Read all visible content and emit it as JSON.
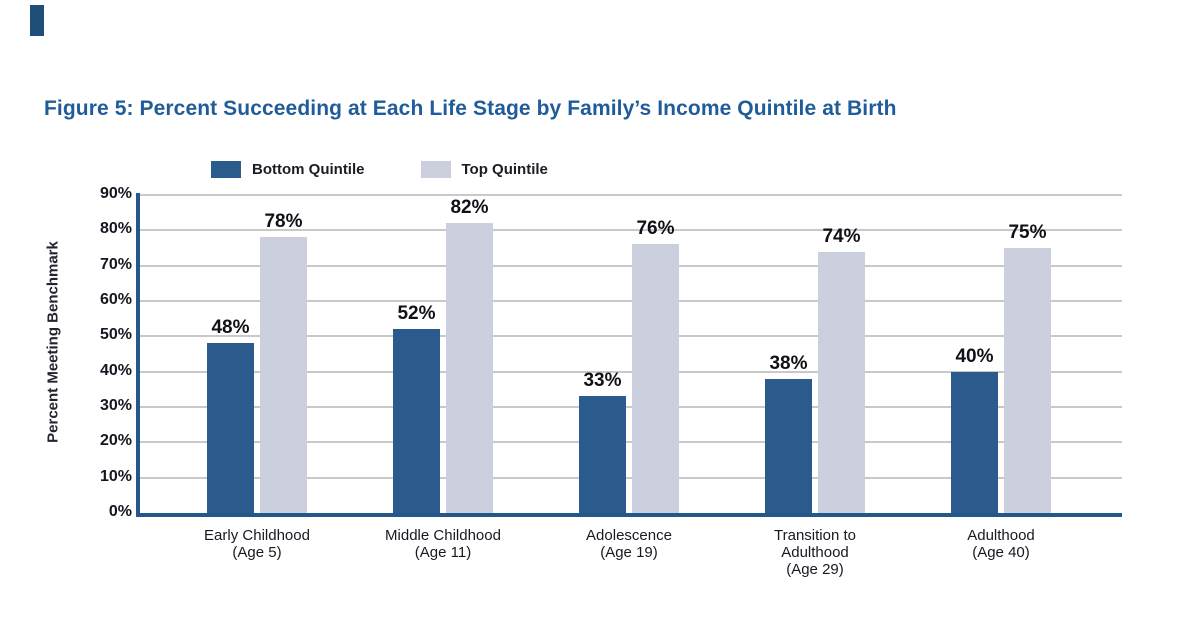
{
  "figure": {
    "title": "Figure 5: Percent Succeeding at Each Life Stage by Family’s Income Quintile at Birth"
  },
  "colors": {
    "title_blue": "#1F5C99",
    "bottom_quintile": "#2A5B8C",
    "top_quintile": "#CCCFDE",
    "axis_navy": "#24578A",
    "gridline_gray": "#C9C9C9",
    "page_marker_navy": "#1F4E79"
  },
  "chart_data": {
    "type": "bar",
    "title": "Figure 5: Percent Succeeding at Each Life Stage by Family’s Income Quintile at Birth",
    "xlabel": "",
    "ylabel": "Percent Meeting Benchmark",
    "ylim": [
      0,
      90
    ],
    "grid": true,
    "legend_position": "top",
    "yticks": [
      "90%",
      "80%",
      "70%",
      "60%",
      "50%",
      "40%",
      "30%",
      "20%",
      "10%",
      "0%"
    ],
    "categories": [
      [
        "Early Childhood",
        "(Age 5)"
      ],
      [
        "Middle Childhood",
        "(Age 11)"
      ],
      [
        "Adolescence",
        "(Age 19)"
      ],
      [
        "Transition to",
        "Adulthood",
        "(Age 29)"
      ],
      [
        "Adulthood",
        "(Age 40)"
      ]
    ],
    "series": [
      {
        "name": "Bottom Quintile",
        "color": "#2A5B8C",
        "values": [
          48,
          52,
          33,
          38,
          40
        ],
        "data_labels": [
          "48%",
          "52%",
          "33%",
          "38%",
          "40%"
        ]
      },
      {
        "name": "Top Quintile",
        "color": "#CCCFDE",
        "values": [
          78,
          82,
          76,
          74,
          75
        ],
        "data_labels": [
          "78%",
          "82%",
          "76%",
          "74%",
          "75%"
        ]
      }
    ]
  }
}
